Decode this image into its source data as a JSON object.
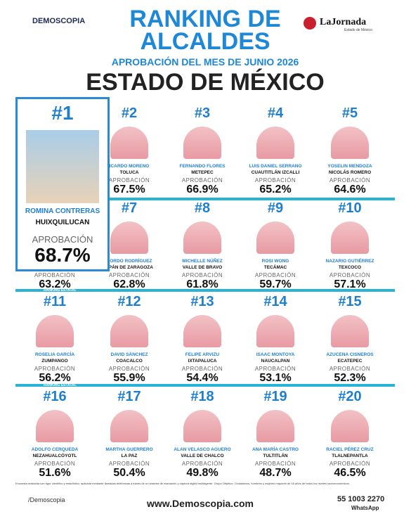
{
  "header": {
    "brand": "DEMOSCOPIA",
    "title_line1": "RANKING DE",
    "title_line2": "ALCALDES",
    "subtitle": "APROBACIÓN DEL MES DE JUNIO 2026",
    "state": "ESTADO DE MÉXICO",
    "newspaper": "LaJornada",
    "newspaper_sub": "Estado de México"
  },
  "top": {
    "rank": "#1",
    "name": "ROMINA CONTRERAS",
    "city": "HUIXQUILUCAN",
    "label": "APROBACIÓN",
    "approval": "68.7%"
  },
  "rankings": [
    {
      "rank": "#2",
      "name": "ICARDO MORENO",
      "city": "TOLUCA",
      "label": "APROBACIÓN",
      "approval": "67.5%"
    },
    {
      "rank": "#3",
      "name": "FERNANDO FLORES",
      "city": "METEPEC",
      "label": "APROBACIÓN",
      "approval": "66.9%"
    },
    {
      "rank": "#4",
      "name": "LUIS DANIEL SERRANO",
      "city": "CUAUTITLÁN IZCALLI",
      "label": "APROBACIÓN",
      "approval": "65.2%"
    },
    {
      "rank": "#5",
      "name": "YOSELIN MENDOZA",
      "city": "NICOLÁS ROMERO",
      "label": "APROBACIÓN",
      "approval": "64.6%"
    },
    {
      "label": "APROBACIÓN",
      "approval": "63.2%"
    },
    {
      "rank": "#7",
      "name": "CORDO RODRÍGUEZ",
      "city": "APÁN DE ZARAGOZA",
      "label": "APROBACIÓN",
      "approval": "62.8%"
    },
    {
      "rank": "#8",
      "name": "MICHELLE NÚÑEZ",
      "city": "VALLE DE BRAVO",
      "label": "APROBACIÓN",
      "approval": "61.8%"
    },
    {
      "rank": "#9",
      "name": "ROSI WONG",
      "city": "TECÁMAC",
      "label": "APROBACIÓN",
      "approval": "59.7%"
    },
    {
      "rank": "#10",
      "name": "NAZARIO GUTIÉRREZ",
      "city": "TEXCOCO",
      "label": "APROBACIÓN",
      "approval": "57.1%"
    },
    {
      "rank": "#11",
      "name": "ROSELIA GARCÍA",
      "city": "ZUMPANGO",
      "label": "APROBACIÓN",
      "approval": "56.2%"
    },
    {
      "rank": "#12",
      "name": "DAVID SÁNCHEZ",
      "city": "COACALCO",
      "label": "APROBACIÓN",
      "approval": "55.9%"
    },
    {
      "rank": "#13",
      "name": "FELIPE ARVIZU",
      "city": "IXTAPALUCA",
      "label": "APROBACIÓN",
      "approval": "54.4%"
    },
    {
      "rank": "#14",
      "name": "ISAAC MONTOYA",
      "city": "NAUCALPAN",
      "label": "APROBACIÓN",
      "approval": "53.1%"
    },
    {
      "rank": "#15",
      "name": "AZUCENA CISNEROS",
      "city": "ECATEPEC",
      "label": "APROBACIÓN",
      "approval": "52.3%"
    },
    {
      "rank": "#16",
      "name": "ADOLFO CERQUEDA",
      "city": "NEZAHUALCÓYOTL",
      "label": "APROBACIÓN",
      "approval": "51.6%"
    },
    {
      "rank": "#17",
      "name": "MARTHA GUERRERO",
      "city": "LA PAZ",
      "label": "APROBACIÓN",
      "approval": "50.4%"
    },
    {
      "rank": "#18",
      "name": "ALAN VELASCO AGUERO",
      "city": "VALLE DE CHALCO",
      "label": "APROBACIÓN",
      "approval": "49.8%"
    },
    {
      "rank": "#19",
      "name": "ANA MARÍA CASTRO",
      "city": "TULTITLÁN",
      "label": "APROBACIÓN",
      "approval": "48.7%"
    },
    {
      "rank": "#20",
      "name": "RACIEL PÉREZ CRUZ",
      "city": "TLALNEPANTLA",
      "label": "APROBACIÓN",
      "approval": "46.5%"
    }
  ],
  "dividers": [
    "RANKING ESTATAL",
    "RANKING ESTATAL"
  ],
  "footer": {
    "note": "Encuesta realizada con rigor científico y estadístico, aplicada mediante llamadas telefónicas a través de un sistema de marcación y captura digital multiagente. Grupo Objetivo: Ciudadanos, hombres y mujeres mayores de 18 años de todos los niveles socioeconómicos.",
    "social": "/Demoscopia",
    "url": "www.Demoscopia.com",
    "phone": "55 1003 2270",
    "whatsapp": "WhatsApp"
  }
}
